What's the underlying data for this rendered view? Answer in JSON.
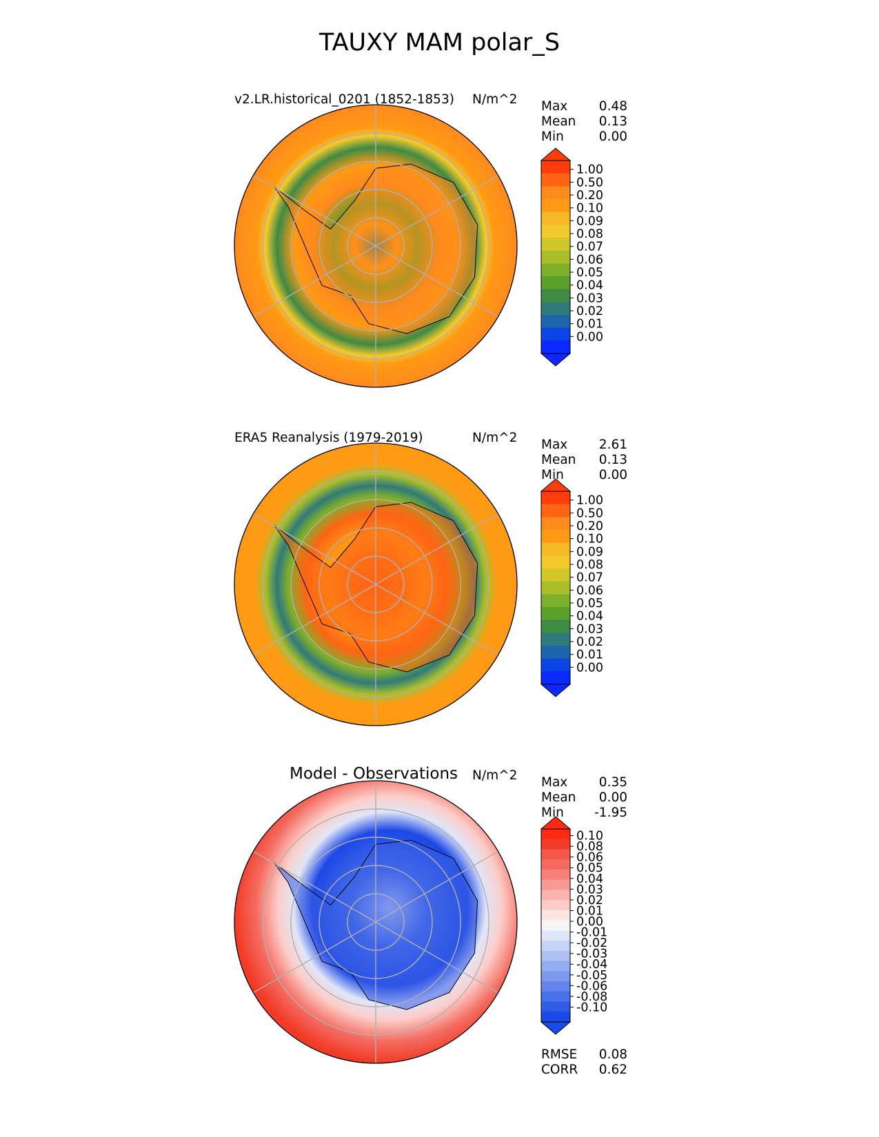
{
  "page": {
    "title": "TAUXY MAM polar_S"
  },
  "chart_data": [
    {
      "type": "heatmap",
      "projection": "south polar stereographic",
      "title": "v2.LR.historical_0201 (1852-1853)",
      "units": "N/m^2",
      "stats": [
        {
          "label": "Max",
          "value": "0.48"
        },
        {
          "label": "Mean",
          "value": "0.13"
        },
        {
          "label": "Min",
          "value": "0.00"
        }
      ],
      "colorbar": {
        "ticks": [
          "1.00",
          "0.50",
          "0.20",
          "0.10",
          "0.09",
          "0.08",
          "0.07",
          "0.06",
          "0.05",
          "0.04",
          "0.03",
          "0.02",
          "0.01",
          "0.00"
        ],
        "colors": [
          "#ff3d0a",
          "#ff6414",
          "#ff8a1e",
          "#ff9a14",
          "#f7b827",
          "#f4c92c",
          "#d2c72a",
          "#a8bf2a",
          "#7fb02a",
          "#5aa02a",
          "#3f8a45",
          "#2f7a7a",
          "#1e64aa",
          "#0a46e6",
          "#0a28ff"
        ],
        "extend": "both"
      },
      "grid": true
    },
    {
      "type": "heatmap",
      "projection": "south polar stereographic",
      "title": "ERA5 Reanalysis (1979-2019)",
      "units": "N/m^2",
      "stats": [
        {
          "label": "Max",
          "value": "2.61"
        },
        {
          "label": "Mean",
          "value": "0.13"
        },
        {
          "label": "Min",
          "value": "0.00"
        }
      ],
      "colorbar": {
        "ticks": [
          "1.00",
          "0.50",
          "0.20",
          "0.10",
          "0.09",
          "0.08",
          "0.07",
          "0.06",
          "0.05",
          "0.04",
          "0.03",
          "0.02",
          "0.01",
          "0.00"
        ],
        "colors": [
          "#ff3d0a",
          "#ff6414",
          "#ff8a1e",
          "#ff9a14",
          "#f7b827",
          "#f4c92c",
          "#d2c72a",
          "#a8bf2a",
          "#7fb02a",
          "#5aa02a",
          "#3f8a45",
          "#2f7a7a",
          "#1e64aa",
          "#0a46e6",
          "#0a28ff"
        ],
        "extend": "both"
      },
      "grid": true
    },
    {
      "type": "heatmap",
      "projection": "south polar stereographic",
      "title": "Model - Observations",
      "units": "N/m^2",
      "stats": [
        {
          "label": "Max",
          "value": "0.35"
        },
        {
          "label": "Mean",
          "value": "0.00"
        },
        {
          "label": "Min",
          "value": "-1.95"
        }
      ],
      "metrics": [
        {
          "label": "RMSE",
          "value": "0.08"
        },
        {
          "label": "CORR",
          "value": "0.62"
        }
      ],
      "colorbar": {
        "ticks": [
          "0.10",
          "0.08",
          "0.06",
          "0.05",
          "0.04",
          "0.03",
          "0.02",
          "0.01",
          "0.00",
          "-0.01",
          "-0.02",
          "-0.03",
          "-0.04",
          "-0.05",
          "-0.06",
          "-0.08",
          "-0.10"
        ],
        "colors": [
          "#ff2a10",
          "#f23b26",
          "#f4584a",
          "#f46b60",
          "#f6817a",
          "#f89a93",
          "#fab4ad",
          "#fccdc8",
          "#fde6e2",
          "#f5f5f5",
          "#e0e6f8",
          "#c7d3f5",
          "#aec0f2",
          "#94acf0",
          "#7b98ee",
          "#6284eb",
          "#4970e8",
          "#305ce6",
          "#1c48e6"
        ],
        "extend": "both"
      },
      "grid": true
    }
  ]
}
